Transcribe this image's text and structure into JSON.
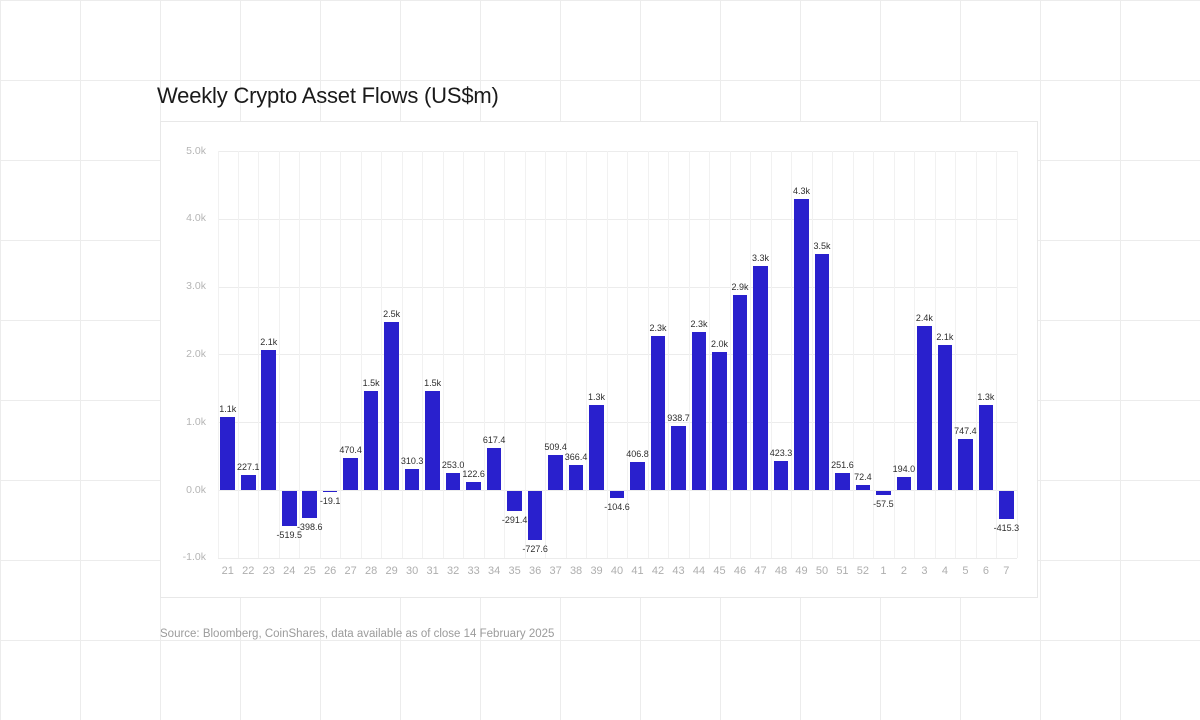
{
  "page": {
    "title": "Weekly Crypto Asset Flows (US$m)",
    "source": "Source: Bloomberg, CoinShares, data available as of close 14 February 2025"
  },
  "chart_data": {
    "type": "bar",
    "title": "Weekly Crypto Asset Flows (US$m)",
    "xlabel": "",
    "ylabel": "",
    "categories": [
      "21",
      "22",
      "23",
      "24",
      "25",
      "26",
      "27",
      "28",
      "29",
      "30",
      "31",
      "32",
      "33",
      "34",
      "35",
      "36",
      "37",
      "38",
      "39",
      "40",
      "41",
      "42",
      "43",
      "44",
      "45",
      "46",
      "47",
      "48",
      "49",
      "50",
      "51",
      "52",
      "1",
      "2",
      "3",
      "4",
      "5",
      "6",
      "7"
    ],
    "values": [
      1082,
      227.1,
      2058,
      -519.5,
      -398.6,
      -19.1,
      470.4,
      1463,
      2478,
      310.3,
      1464,
      253.0,
      122.6,
      617.4,
      -291.4,
      -727.6,
      509.4,
      366.4,
      1257,
      -104.6,
      406.8,
      2266,
      938.7,
      2330,
      2037,
      2872,
      3305,
      423.3,
      4286,
      3487,
      251.6,
      72.4,
      -57.5,
      194.0,
      2417,
      2136,
      747.4,
      1253,
      -415.3
    ],
    "bar_labels": [
      "1.1k",
      "227.1",
      "2.1k",
      "-519.5",
      "-398.6",
      "-19.1",
      "470.4",
      "1.5k",
      "2.5k",
      "310.3",
      "1.5k",
      "253.0",
      "122.6",
      "617.4",
      "-291.4",
      "-727.6",
      "509.4",
      "366.4",
      "1.3k",
      "-104.6",
      "406.8",
      "2.3k",
      "938.7",
      "2.3k",
      "2.0k",
      "2.9k",
      "3.3k",
      "423.3",
      "4.3k",
      "3.5k",
      "251.6",
      "72.4",
      "-57.5",
      "194.0",
      "2.4k",
      "2.1k",
      "747.4",
      "1.3k",
      "-415.3"
    ],
    "y_ticks": [
      "5.0k",
      "4.0k",
      "3.0k",
      "2.0k",
      "1.0k",
      "0.0k",
      "-1.0k"
    ],
    "ylim": [
      -1000,
      5000
    ],
    "grid": true,
    "legend": false,
    "bar_color": "#2920cd",
    "source": "Source: Bloomberg, CoinShares, data available as of close 14 February 2025"
  }
}
